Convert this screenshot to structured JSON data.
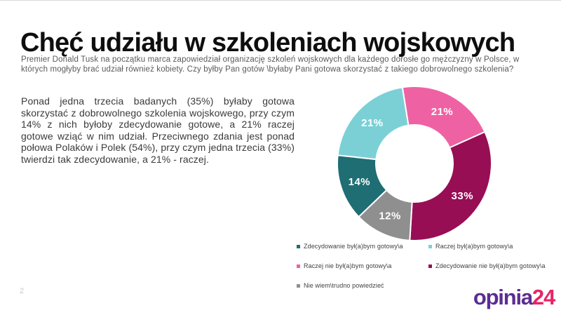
{
  "page": {
    "page_number": "2"
  },
  "header": {
    "title": "Chęć udziału w szkoleniach wojskowych",
    "subtitle": "Premier Donald Tusk na początku marca zapowiedział organizację szkoleń wojskowych dla każdego dorosłe go mężczyzny w Polsce, w których mogłyby brać udział również kobiety. Czy byłby Pan gotów \\byłaby Pani gotowa skorzystać z takiego dobrowolnego szkolenia?"
  },
  "body": {
    "paragraph": "Ponad jedna trzecia badanych (35%) byłaby gotowa skorzystać z dobrowolnego szkolenia wojskowego, przy czym 14% z nich byłoby zdecydowanie gotowe, a 21% raczej gotowe wziąć w nim udział. Przeciwnego zdania jest ponad połowa Polaków i Polek (54%), przy czym jedna trzecia (33%) twierdzi tak zdecydowanie, a 21% - raczej."
  },
  "chart_data": {
    "type": "pie",
    "subtype": "donut",
    "title": "",
    "start_angle_deg": -9,
    "direction": "clockwise",
    "labels": "percent-inside-white",
    "legend_position": "bottom-two-columns",
    "slices": [
      {
        "label": "Raczej nie był(a)bym gotowy\\a",
        "value": 21,
        "display": "21%",
        "color": "#ee62a3"
      },
      {
        "label": "Zdecydowanie nie był(a)bym gotowy\\a",
        "value": 33,
        "display": "33%",
        "color": "#970e55"
      },
      {
        "label": "Nie wiem\\trudno powiedzieć",
        "value": 12,
        "display": "12%",
        "color": "#8f8f8f"
      },
      {
        "label": "Zdecydowanie był(a)bym gotowy\\a",
        "value": 14,
        "display": "14%",
        "color": "#1e6e74"
      },
      {
        "label": "Raczej był(a)bym gotowy\\a",
        "value": 21,
        "display": "21%",
        "color": "#7bd0d6"
      }
    ],
    "legend_order": [
      3,
      4,
      0,
      1,
      2
    ]
  },
  "logo": {
    "text_primary": "opinia",
    "text_secondary": "24",
    "color_primary": "#5b2d91",
    "color_secondary": "#e62565"
  }
}
